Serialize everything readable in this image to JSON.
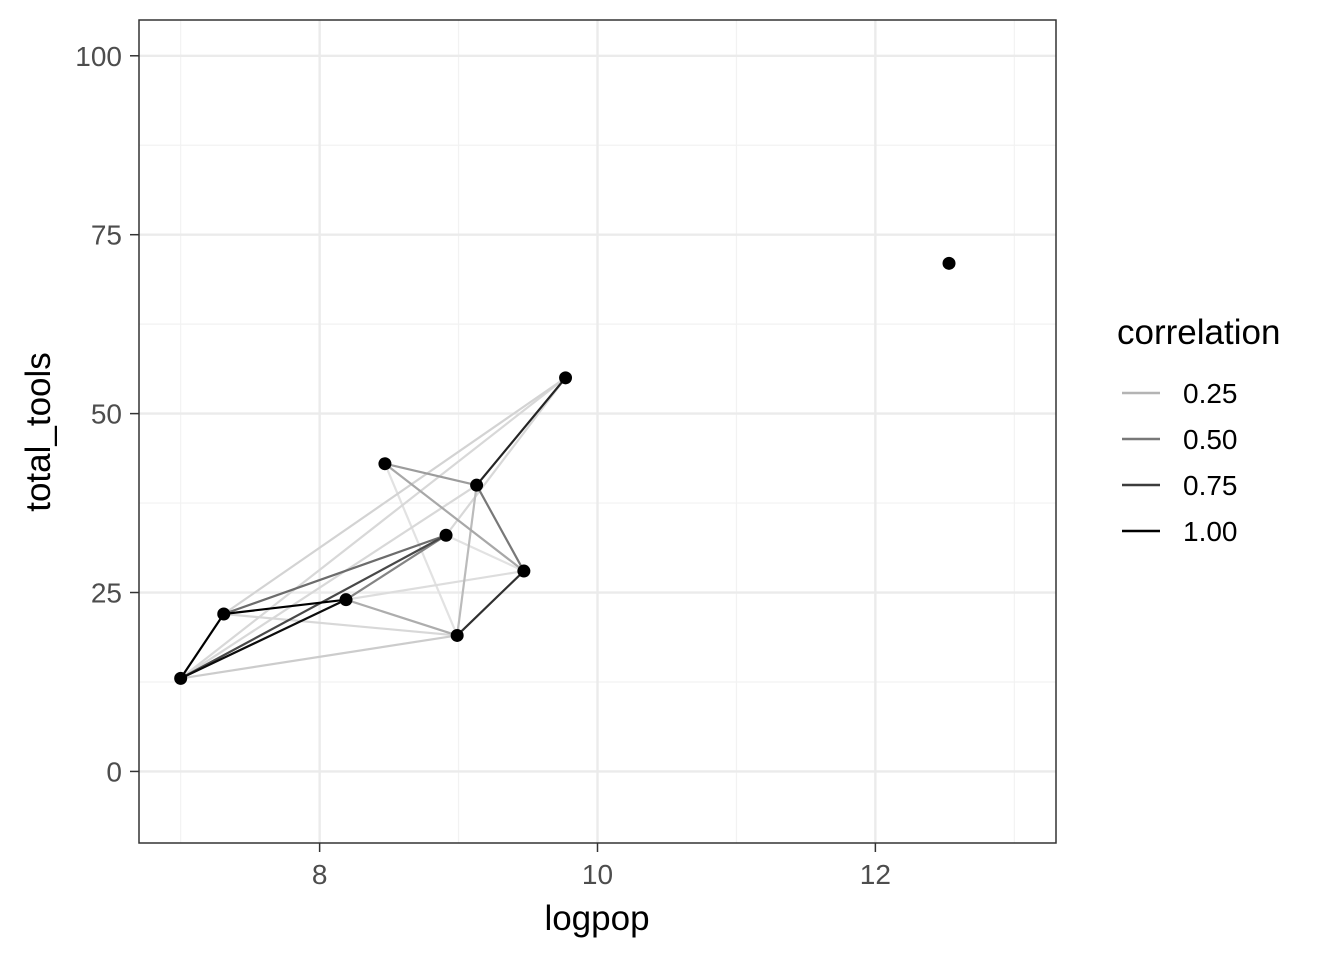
{
  "chart_data": {
    "type": "scatter",
    "title": "",
    "xlabel": "logpop",
    "ylabel": "total_tools",
    "xlim": [
      6.7,
      13.3
    ],
    "ylim": [
      -10,
      105
    ],
    "xticks": [
      8,
      10,
      12
    ],
    "xtick_labels": [
      "8",
      "10",
      "12"
    ],
    "yticks": [
      0,
      25,
      50,
      75,
      100
    ],
    "ytick_labels": [
      "0",
      "25",
      "50",
      "75",
      "100"
    ],
    "grid": true,
    "points": [
      {
        "x": 7.0,
        "y": 13
      },
      {
        "x": 7.31,
        "y": 22
      },
      {
        "x": 8.19,
        "y": 24
      },
      {
        "x": 8.47,
        "y": 43
      },
      {
        "x": 8.91,
        "y": 33
      },
      {
        "x": 8.99,
        "y": 19
      },
      {
        "x": 9.13,
        "y": 40
      },
      {
        "x": 9.47,
        "y": 28
      },
      {
        "x": 9.77,
        "y": 55
      },
      {
        "x": 12.53,
        "y": 71
      }
    ],
    "edges": [
      {
        "from": 0,
        "to": 1,
        "correlation": 1.0
      },
      {
        "from": 1,
        "to": 2,
        "correlation": 1.0
      },
      {
        "from": 0,
        "to": 2,
        "correlation": 0.95
      },
      {
        "from": 6,
        "to": 8,
        "correlation": 0.85
      },
      {
        "from": 5,
        "to": 7,
        "correlation": 0.8
      },
      {
        "from": 0,
        "to": 4,
        "correlation": 0.7
      },
      {
        "from": 1,
        "to": 4,
        "correlation": 0.55
      },
      {
        "from": 6,
        "to": 7,
        "correlation": 0.5
      },
      {
        "from": 2,
        "to": 4,
        "correlation": 0.45
      },
      {
        "from": 3,
        "to": 6,
        "correlation": 0.35
      },
      {
        "from": 3,
        "to": 7,
        "correlation": 0.3
      },
      {
        "from": 2,
        "to": 5,
        "correlation": 0.28
      },
      {
        "from": 6,
        "to": 5,
        "correlation": 0.22
      },
      {
        "from": 0,
        "to": 5,
        "correlation": 0.15
      },
      {
        "from": 1,
        "to": 8,
        "correlation": 0.12
      },
      {
        "from": 0,
        "to": 8,
        "correlation": 0.1
      },
      {
        "from": 4,
        "to": 8,
        "correlation": 0.1
      },
      {
        "from": 0,
        "to": 6,
        "correlation": 0.1
      },
      {
        "from": 1,
        "to": 5,
        "correlation": 0.1
      },
      {
        "from": 2,
        "to": 7,
        "correlation": 0.08
      },
      {
        "from": 3,
        "to": 5,
        "correlation": 0.06
      },
      {
        "from": 4,
        "to": 7,
        "correlation": 0.06
      }
    ],
    "legend": {
      "title": "correlation",
      "position": "right",
      "entries": [
        {
          "label": "0.25",
          "correlation": 0.25
        },
        {
          "label": "0.50",
          "correlation": 0.5
        },
        {
          "label": "0.75",
          "correlation": 0.75
        },
        {
          "label": "1.00",
          "correlation": 1.0
        }
      ]
    },
    "colors": {
      "point": "#000000",
      "panel_border": "#333333",
      "grid_major": "#ebebeb",
      "grid_minor": "#f2f2f2",
      "tick_text": "#4d4d4d",
      "axis_title": "#000000"
    }
  }
}
